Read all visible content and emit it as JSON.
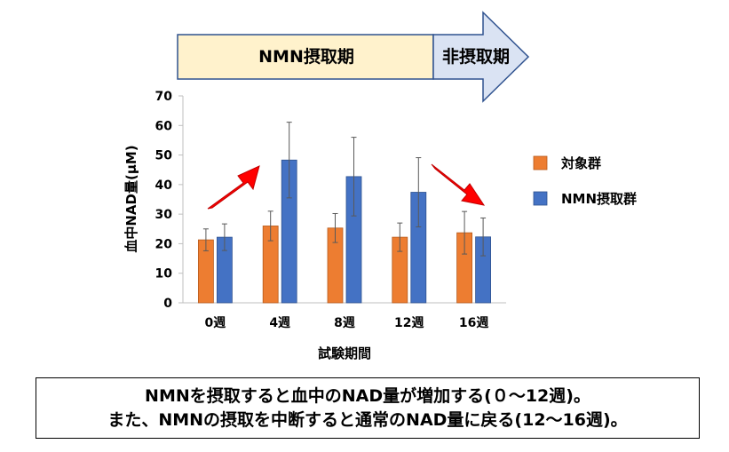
{
  "phases": {
    "intake_label": "NMN摂取期",
    "non_intake_label": "非摂取期"
  },
  "chart_data": {
    "type": "bar",
    "xlabel": "試験期間",
    "ylabel": "血中NAD量(μM)",
    "ylim": [
      0,
      70
    ],
    "yticks": [
      0,
      10,
      20,
      30,
      40,
      50,
      60,
      70
    ],
    "categories": [
      "0週",
      "4週",
      "8週",
      "12週",
      "16週"
    ],
    "series": [
      {
        "name": "対象群",
        "color": "#ED7D31",
        "values": [
          21.3,
          26.0,
          25.3,
          22.2,
          23.7
        ],
        "errors": [
          3.7,
          5.0,
          4.9,
          4.8,
          7.2
        ]
      },
      {
        "name": "NMN摂取群",
        "color": "#4472C4",
        "values": [
          22.2,
          48.3,
          42.7,
          37.4,
          22.3
        ],
        "errors": [
          4.5,
          12.8,
          13.3,
          11.7,
          6.4
        ]
      }
    ],
    "legend_position": "right",
    "grid": false,
    "annotations": [
      {
        "type": "arrow",
        "direction": "up-right",
        "color": "#FF0000",
        "between": [
          "0週",
          "4週"
        ]
      },
      {
        "type": "arrow",
        "direction": "down-right",
        "color": "#FF0000",
        "between": [
          "12週",
          "16週"
        ]
      }
    ]
  },
  "caption": {
    "line1": "NMNを摂取すると血中のNAD量が増加する(０～12週)。",
    "line2": "また、NMNの摂取を中断すると通常のNAD量に戻る(12～16週)。"
  }
}
